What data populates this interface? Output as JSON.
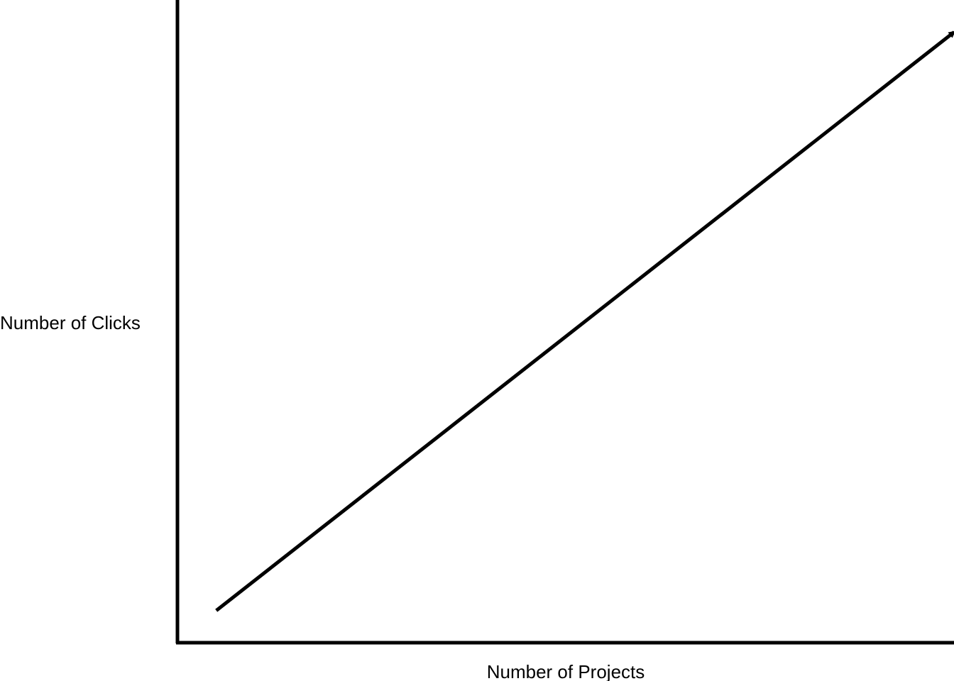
{
  "chart_data": {
    "type": "line",
    "xlabel": "Number of Projects",
    "ylabel": "Number of Clicks",
    "title": "",
    "xlim": [
      0,
      1
    ],
    "ylim": [
      0,
      1
    ],
    "grid": false,
    "legend": "none",
    "series": [
      {
        "x": [
          0.05,
          1.0
        ],
        "y": [
          0.05,
          0.95
        ],
        "arrow_at_end": true
      }
    ]
  },
  "colors": {
    "axis": "#000000",
    "line": "#000000",
    "background": "#ffffff"
  }
}
